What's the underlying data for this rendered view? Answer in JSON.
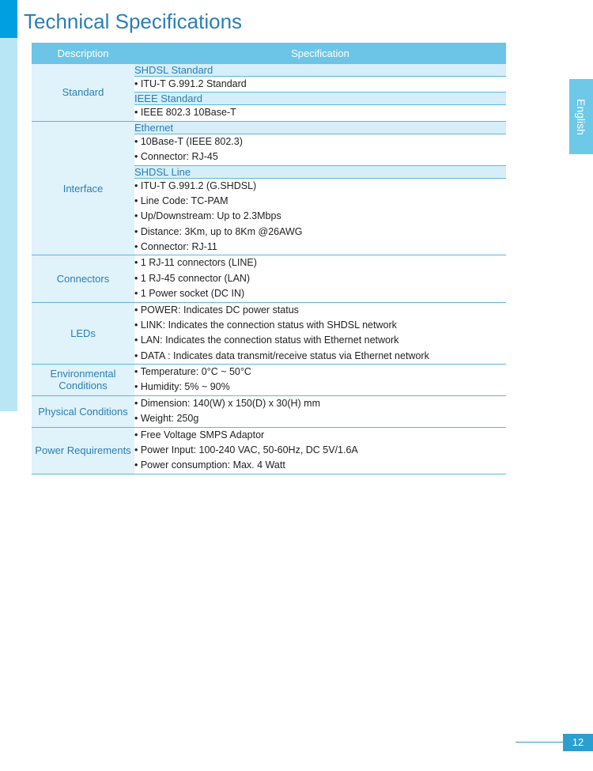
{
  "page": {
    "title": "Technical Specifications",
    "side_label": "English",
    "page_number": "12"
  },
  "table": {
    "headers": {
      "description": "Description",
      "specification": "Specification"
    },
    "sections": {
      "standard": {
        "label": "Standard",
        "sub1_head": "SHDSL Standard",
        "sub1_body": "• ITU-T G.991.2 Standard",
        "sub2_head": "IEEE Standard",
        "sub2_body": "• IEEE 802.3 10Base-T"
      },
      "interface": {
        "label": "Interface",
        "sub1_head": "Ethernet",
        "sub1_l1": "• 10Base-T (IEEE 802.3)",
        "sub1_l2": "• Connector: RJ-45",
        "sub2_head": "SHDSL Line",
        "sub2_l1": "• ITU-T G.991.2 (G.SHDSL)",
        "sub2_l2": "• Line Code: TC-PAM",
        "sub2_l3": "• Up/Downstream: Up to 2.3Mbps",
        "sub2_l4": "• Distance: 3Km, up to 8Km @26AWG",
        "sub2_l5": "• Connector: RJ-11"
      },
      "connectors": {
        "label": "Connectors",
        "l1": "• 1 RJ-11 connectors (LINE)",
        "l2": "• 1 RJ-45 connector (LAN)",
        "l3": "• 1 Power socket (DC IN)"
      },
      "leds": {
        "label": "LEDs",
        "l1": "• POWER: Indicates DC power status",
        "l2": "• LINK: Indicates the connection status with SHDSL network",
        "l3": "• LAN: Indicates the connection status with Ethernet network",
        "l4": "• DATA : Indicates data transmit/receive status via Ethernet network"
      },
      "env": {
        "label": "Environmental Conditions",
        "l1": "• Temperature: 0°C ~ 50°C",
        "l2": "• Humidity: 5% ~ 90%"
      },
      "phys": {
        "label": "Physical Conditions",
        "l1": "• Dimension: 140(W) x 150(D) x 30(H) mm",
        "l2": "• Weight: 250g"
      },
      "power": {
        "label": "Power Requirements",
        "l1": "• Free Voltage SMPS Adaptor",
        "l2": "• Power Input: 100-240 VAC, 50-60Hz, DC 5V/1.6A",
        "l3": "• Power consumption: Max. 4 Watt"
      }
    }
  }
}
